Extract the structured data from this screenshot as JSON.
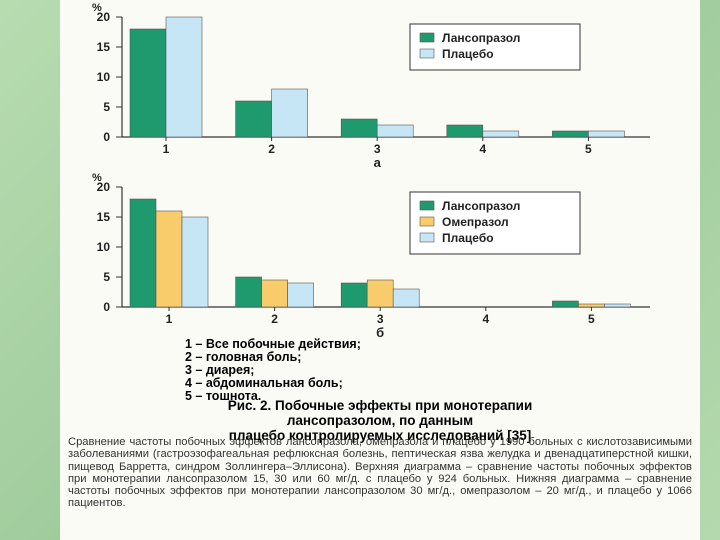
{
  "chart_data": [
    {
      "type": "bar",
      "ylabel": "%",
      "ylim": [
        0,
        20
      ],
      "yticks": [
        0,
        5,
        10,
        15,
        20
      ],
      "categories": [
        "1",
        "2",
        "3",
        "4",
        "5"
      ],
      "xlabel": "а",
      "series": [
        {
          "name": "Лансопразол",
          "color": "#1f9a6f",
          "values": [
            18,
            6,
            3,
            2,
            1
          ]
        },
        {
          "name": "Плацебо",
          "color": "#c6e6f5",
          "values": [
            20,
            8,
            2,
            1,
            1
          ]
        }
      ],
      "legend_position": "top-right"
    },
    {
      "type": "bar",
      "ylabel": "%",
      "ylim": [
        0,
        20
      ],
      "yticks": [
        0,
        5,
        10,
        15,
        20
      ],
      "categories": [
        "1",
        "2",
        "3",
        "4",
        "5"
      ],
      "xlabel": "б",
      "series": [
        {
          "name": "Лансопразол",
          "color": "#1f9a6f",
          "values": [
            18,
            5,
            4,
            0,
            1
          ]
        },
        {
          "name": "Омепразол",
          "color": "#f9cc6b",
          "values": [
            16,
            4.5,
            4.5,
            0,
            0.5
          ]
        },
        {
          "name": "Плацебо",
          "color": "#c6e6f5",
          "values": [
            15,
            4,
            3,
            0,
            0.5
          ]
        }
      ],
      "legend_position": "top-right"
    }
  ],
  "legend_items": [
    "1 – Все побочные действия;",
    "2 – головная боль;",
    "3 – диарея;",
    "4 – абдоминальная боль;",
    "5 – тошнота."
  ],
  "figure_title": {
    "line1": "Рис. 2. Побочные эффекты при монотерапии",
    "line2": "лансопразолом, по данным",
    "line3": "плацебо контролируемых исследований [35]"
  },
  "figure_description": "Сравнение частоты побочных эффектов лансопразола, омепразола и плацебо у 1990 больных с кислотозависимыми заболеваниями (гастроэзофагеальная рефлюксная болезнь, пептическая язва желудка и двенадцатиперстной кишки, пищевод Барретта, синдром Золлингера–Эллисона). Верхняя диаграмма – сравнение частоты побочных эффектов при монотерапии лансопразолом 15, 30 или 60 мг/д. с плацебо у 924 больных. Нижняя диаграмма – сравнение частоты побочных эффектов при монотерапии лансопразолом 30 мг/д., омепразолом – 20 мг/д., и плацебо у 1066 пациентов."
}
